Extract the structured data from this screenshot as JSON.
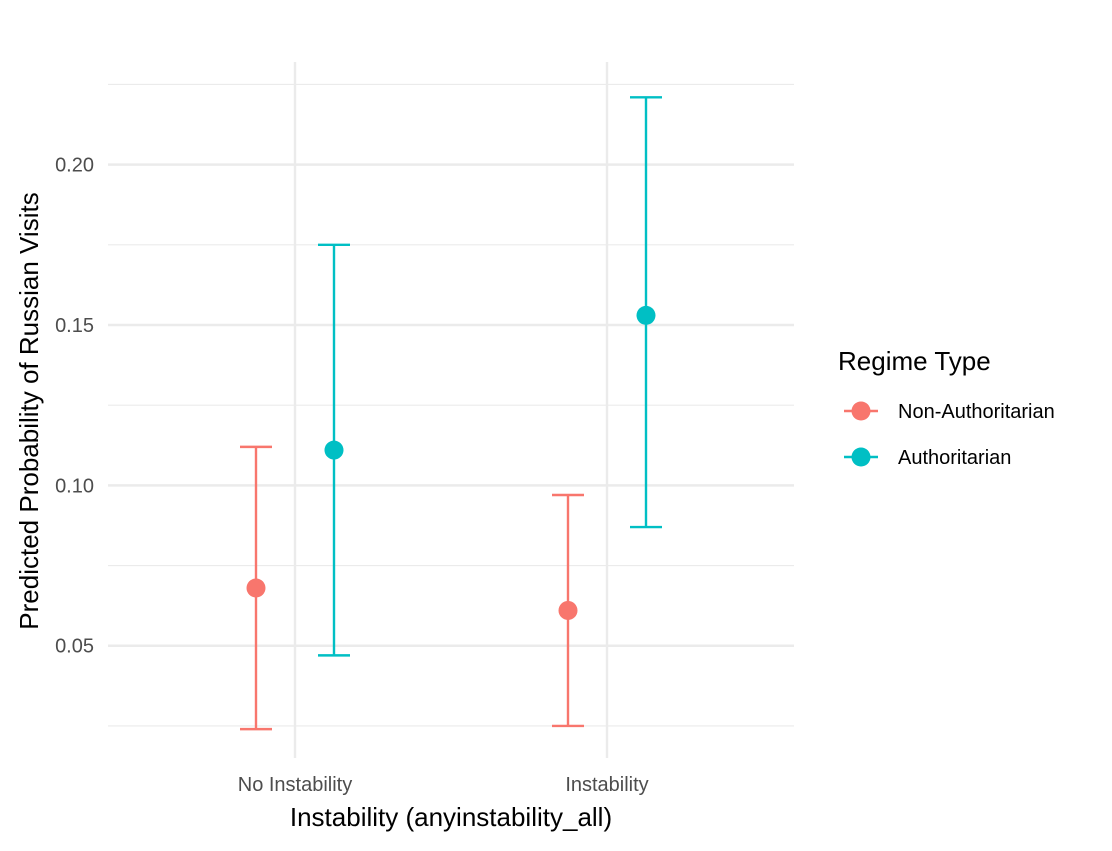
{
  "chart_data": {
    "type": "scatter",
    "subtype": "point-range with error bars",
    "title": "",
    "xlabel": "Instability (anyinstability_all)",
    "ylabel": "Predicted Probability of Russian Visits",
    "categories": [
      "No Instability",
      "Instability"
    ],
    "yticks": [
      "0.05",
      "0.10",
      "0.15",
      "0.20"
    ],
    "ylim": [
      0.015,
      0.232
    ],
    "grid": true,
    "legend": {
      "title": "Regime Type",
      "position": "right"
    },
    "series": [
      {
        "name": "Non-Authoritarian",
        "color": "#F8766D",
        "values": [
          0.068,
          0.061
        ],
        "lower": [
          0.024,
          0.025
        ],
        "upper": [
          0.112,
          0.097
        ]
      },
      {
        "name": "Authoritarian",
        "color": "#00BFC4",
        "values": [
          0.111,
          0.153
        ],
        "lower": [
          0.047,
          0.087
        ],
        "upper": [
          0.175,
          0.221
        ]
      }
    ]
  }
}
